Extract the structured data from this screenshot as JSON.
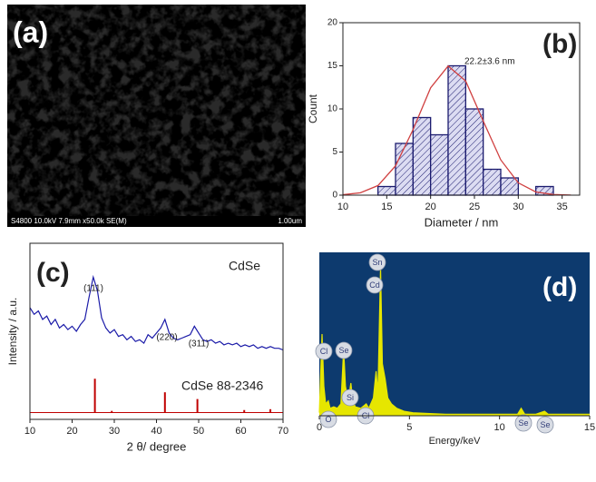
{
  "image_panel": {
    "label": "(a)",
    "caption": "S4800 10.0kV 7.9mm x50.0k SE(M)",
    "scale": "1.00um"
  },
  "chart_data": [
    {
      "type": "histogram",
      "panel_label": "(b)",
      "annotation": "22.2±3.6 nm",
      "x_label": "Diameter / nm",
      "y_label": "Count",
      "bins": [
        14,
        16,
        18,
        20,
        22,
        24,
        26,
        28,
        30,
        32,
        34
      ],
      "values": [
        1,
        6,
        9,
        7,
        15,
        10,
        3,
        2,
        0,
        1
      ],
      "color": "#1a1a6e",
      "fill": "#dcdcf2",
      "fit": {
        "x": [
          10,
          12,
          14,
          16,
          18,
          20,
          22,
          24,
          26,
          28,
          30,
          32,
          34,
          36
        ],
        "values": [
          0.05,
          0.27,
          1.12,
          3.4,
          7.59,
          12.45,
          14.98,
          13.24,
          8.59,
          4.1,
          1.43,
          0.37,
          0.07,
          0.01
        ],
        "color": "#d04040"
      },
      "xlim": [
        10,
        37
      ],
      "xticks": [
        10,
        15,
        20,
        25,
        30,
        35
      ],
      "ylim": [
        0,
        20
      ],
      "yticks": [
        0,
        5,
        10,
        15,
        20
      ]
    },
    {
      "type": "line",
      "panel_label": "(c)",
      "x_label": "2 θ/ degree",
      "y_label": "Intensity / a.u.",
      "sample_label": "CdSe",
      "reference_label": "CdSe 88-2346",
      "peak_labels": [
        "(111)",
        "(220)",
        "(311)"
      ],
      "series": [
        {
          "color": "#1a1aa8",
          "x": [
            10,
            11,
            12,
            13,
            14,
            15,
            16,
            17,
            18,
            19,
            20,
            21,
            22,
            23,
            24,
            25,
            26,
            27,
            28,
            29,
            30,
            31,
            32,
            33,
            34,
            35,
            36,
            37,
            38,
            39,
            40,
            41,
            42,
            43,
            44,
            45,
            46,
            47,
            48,
            49,
            50,
            51,
            52,
            53,
            54,
            55,
            56,
            57,
            58,
            59,
            60,
            61,
            62,
            63,
            64,
            65,
            66,
            67,
            68,
            69,
            70
          ],
          "values": [
            62,
            58,
            60,
            55,
            57,
            52,
            55,
            50,
            52,
            49,
            51,
            48,
            52,
            55,
            68,
            80,
            72,
            56,
            50,
            47,
            49,
            45,
            46,
            43,
            45,
            42,
            43,
            41,
            46,
            44,
            47,
            50,
            55,
            47,
            44,
            43,
            44,
            45,
            46,
            51,
            47,
            43,
            42,
            43,
            41,
            42,
            40,
            41,
            40,
            41,
            39,
            40,
            39,
            40,
            38,
            39,
            38,
            39,
            38,
            38,
            37
          ]
        }
      ],
      "reference": {
        "color": "#c00000",
        "x": [
          25.4,
          29.4,
          42.0,
          49.7,
          60.8,
          67.0
        ],
        "values": [
          20,
          1,
          12,
          8,
          1.5,
          2
        ]
      },
      "xlim": [
        10,
        70
      ],
      "xticks": [
        10,
        20,
        30,
        40,
        50,
        60,
        70
      ],
      "ylim": [
        -4,
        100
      ]
    },
    {
      "type": "area",
      "panel_label": "(d)",
      "x_label": "Energy/keV",
      "background": "#0d3a6e",
      "color": "#e6e600",
      "element_labels": [
        "Cl",
        "Se",
        "O",
        "Si",
        "Cl",
        "Sn",
        "Cd",
        "Se",
        "Se"
      ],
      "x": [
        0,
        0.15,
        0.25,
        0.35,
        0.5,
        0.6,
        0.8,
        1.0,
        1.2,
        1.35,
        1.45,
        1.6,
        1.75,
        1.85,
        2.0,
        2.3,
        2.6,
        2.75,
        3.0,
        3.15,
        3.25,
        3.4,
        3.5,
        3.65,
        3.8,
        4.0,
        4.3,
        4.7,
        5.2,
        6,
        7,
        8,
        9,
        10,
        11,
        11.2,
        11.4,
        12,
        12.5,
        12.7,
        13,
        14,
        15
      ],
      "values": [
        0.02,
        0.55,
        0.2,
        0.08,
        0.1,
        0.05,
        0.06,
        0.05,
        0.08,
        0.45,
        0.2,
        0.1,
        0.22,
        0.1,
        0.06,
        0.05,
        0.08,
        0.05,
        0.12,
        0.3,
        0.15,
        1.0,
        0.35,
        0.25,
        0.12,
        0.08,
        0.05,
        0.03,
        0.02,
        0.015,
        0.01,
        0.01,
        0.01,
        0.01,
        0.01,
        0.05,
        0.01,
        0.01,
        0.03,
        0.01,
        0.01,
        0.01,
        0.01
      ],
      "xlim": [
        0,
        15
      ],
      "xticks": [
        0,
        5,
        10,
        15
      ],
      "ylim": [
        0,
        1.1
      ]
    }
  ]
}
